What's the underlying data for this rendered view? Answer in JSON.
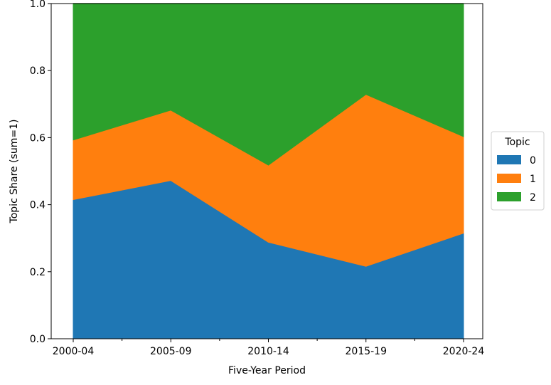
{
  "chart_data": {
    "type": "area",
    "stacked": true,
    "title": "",
    "xlabel": "Five-Year Period",
    "ylabel": "Topic Share (sum=1)",
    "categories": [
      "2000-04",
      "2005-09",
      "2010-14",
      "2015-19",
      "2020-24"
    ],
    "ylim": [
      0,
      1.0
    ],
    "yticks": [
      "0.0",
      "0.2",
      "0.4",
      "0.6",
      "0.8",
      "1.0"
    ],
    "grid": false,
    "legend": {
      "title": "Topic",
      "placement": "center-right-outside"
    },
    "series": [
      {
        "name": "0",
        "color": "#1f77b4",
        "values": [
          0.415,
          0.472,
          0.288,
          0.216,
          0.315
        ]
      },
      {
        "name": "1",
        "color": "#ff7f0e",
        "values": [
          0.178,
          0.21,
          0.23,
          0.513,
          0.288
        ]
      },
      {
        "name": "2",
        "color": "#2ca02c",
        "values": [
          0.407,
          0.318,
          0.482,
          0.271,
          0.397
        ]
      }
    ]
  }
}
